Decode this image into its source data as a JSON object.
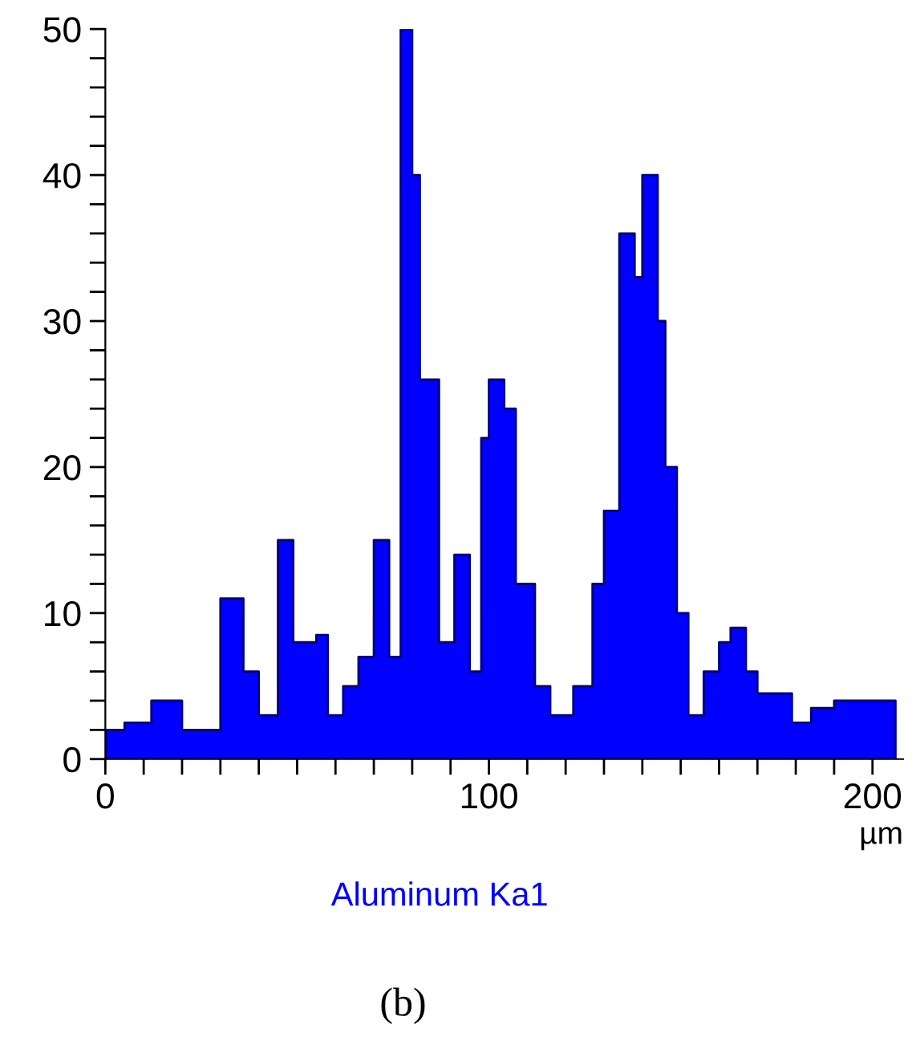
{
  "chart_data": {
    "type": "area",
    "xlabel": "µm",
    "x": [
      0,
      5,
      12,
      20,
      30,
      36,
      40,
      45,
      49,
      55,
      58,
      62,
      66,
      70,
      74,
      77,
      80,
      82,
      87,
      91,
      95,
      98,
      100,
      104,
      107,
      112,
      116,
      122,
      127,
      130,
      134,
      138,
      140,
      144,
      146,
      149,
      152,
      156,
      160,
      163,
      167,
      170,
      175,
      179,
      184,
      190,
      197,
      206
    ],
    "series": [
      {
        "name": "Aluminum Ka1",
        "color": "#0000ff",
        "values": [
          2,
          2.5,
          4,
          2,
          11,
          6,
          3,
          15,
          8,
          8.5,
          3,
          5,
          7,
          15,
          7,
          50,
          40,
          26,
          8,
          14,
          6,
          22,
          26,
          24,
          12,
          5,
          3,
          5,
          12,
          17,
          36,
          33,
          40,
          30,
          20,
          10,
          3,
          6,
          8,
          9,
          6,
          4.5,
          4.5,
          2.5,
          3.5,
          4,
          4,
          2
        ]
      }
    ],
    "xlim": [
      0,
      208
    ],
    "ylim": [
      0,
      50
    ],
    "xticks": [
      0,
      {
        "value": 10,
        "label": null
      },
      {
        "value": 20,
        "label": null
      },
      {
        "value": 30,
        "label": null
      },
      {
        "value": 40,
        "label": null
      },
      {
        "value": 50,
        "label": null
      },
      {
        "value": 60,
        "label": null
      },
      {
        "value": 70,
        "label": null
      },
      {
        "value": 80,
        "label": null
      },
      {
        "value": 90,
        "label": null
      },
      100,
      {
        "value": 110,
        "label": null
      },
      {
        "value": 120,
        "label": null
      },
      {
        "value": 130,
        "label": null
      },
      {
        "value": 140,
        "label": null
      },
      {
        "value": 150,
        "label": null
      },
      {
        "value": 160,
        "label": null
      },
      {
        "value": 170,
        "label": null
      },
      {
        "value": 180,
        "label": null
      },
      {
        "value": 190,
        "label": null
      },
      200
    ],
    "yticks": [
      0,
      10,
      20,
      30,
      40,
      50,
      {
        "value": 2,
        "label": null
      },
      {
        "value": 4,
        "label": null
      },
      {
        "value": 6,
        "label": null
      },
      {
        "value": 8,
        "label": null
      },
      {
        "value": 12,
        "label": null
      },
      {
        "value": 14,
        "label": null
      },
      {
        "value": 16,
        "label": null
      },
      {
        "value": 18,
        "label": null
      },
      {
        "value": 22,
        "label": null
      },
      {
        "value": 24,
        "label": null
      },
      {
        "value": 26,
        "label": null
      },
      {
        "value": 28,
        "label": null
      },
      {
        "value": 32,
        "label": null
      },
      {
        "value": 34,
        "label": null
      },
      {
        "value": 36,
        "label": null
      },
      {
        "value": 38,
        "label": null
      },
      {
        "value": 42,
        "label": null
      },
      {
        "value": 44,
        "label": null
      },
      {
        "value": 46,
        "label": null
      },
      {
        "value": 48,
        "label": null
      }
    ],
    "grid": false,
    "legend": "bottom",
    "annotations": [
      "(b)"
    ]
  }
}
